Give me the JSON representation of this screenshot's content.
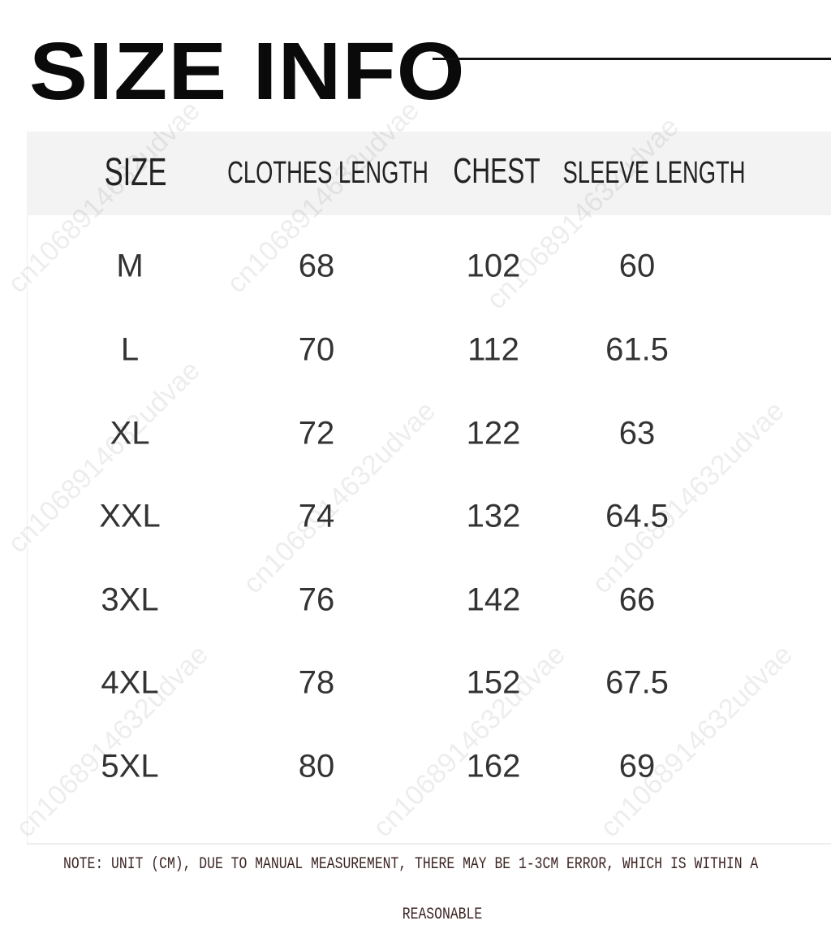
{
  "title": "SIZE INFO",
  "table": {
    "headers": [
      "SIZE",
      "CLOTHES LENGTH",
      "CHEST",
      "SLEEVE LENGTH"
    ],
    "rows": [
      [
        "M",
        "68",
        "102",
        "60"
      ],
      [
        "L",
        "70",
        "112",
        "61.5"
      ],
      [
        "XL",
        "72",
        "122",
        "63"
      ],
      [
        "XXL",
        "74",
        "132",
        "64.5"
      ],
      [
        "3XL",
        "76",
        "142",
        "66"
      ],
      [
        "4XL",
        "78",
        "152",
        "67.5"
      ],
      [
        "5XL",
        "80",
        "162",
        "69"
      ]
    ]
  },
  "note": {
    "line1": "NOTE: UNIT (CM), DUE TO MANUAL MEASUREMENT, THERE MAY BE 1-3CM ERROR, WHICH IS WITHIN A",
    "line2": "REASONABLE"
  },
  "watermark": "cn1068914632udvae"
}
